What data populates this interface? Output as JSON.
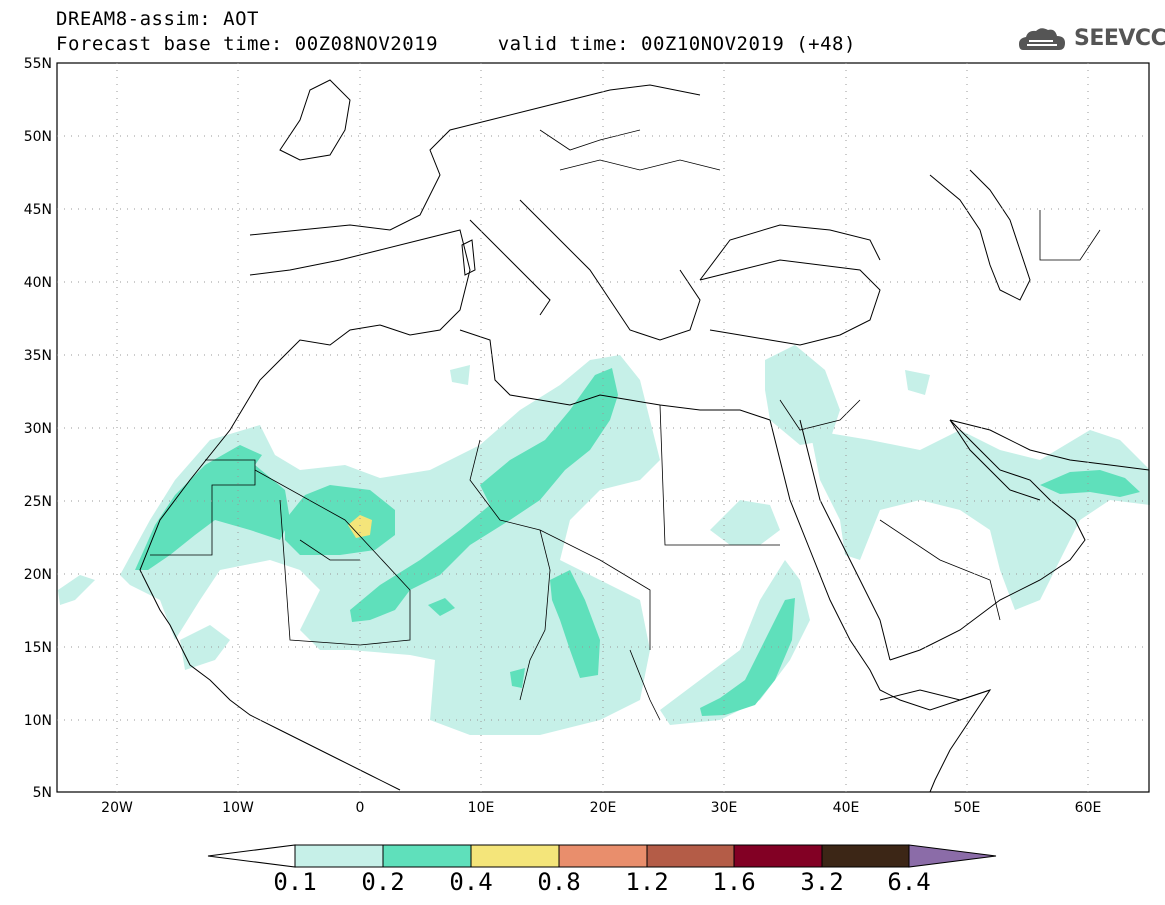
{
  "title": {
    "line1": "DREAM8-assim: AOT",
    "line2": "Forecast base time: 00Z08NOV2019     valid time: 00Z10NOV2019 (+48)"
  },
  "logo": {
    "text": "SEEVCCC",
    "icon": "cloud-icon"
  },
  "map": {
    "lat_labels": [
      "55N",
      "50N",
      "45N",
      "40N",
      "35N",
      "30N",
      "25N",
      "20N",
      "15N",
      "10N",
      "5N"
    ],
    "lon_labels": [
      "20W",
      "10W",
      "0",
      "10E",
      "20E",
      "30E",
      "40E",
      "50E",
      "60E"
    ],
    "lat_range": [
      5,
      55
    ],
    "lon_range": [
      -25,
      65
    ],
    "grid": "dotted"
  },
  "colorbar": {
    "labels": [
      "0.1",
      "0.2",
      "0.4",
      "0.8",
      "1.2",
      "1.6",
      "3.2",
      "6.4"
    ],
    "colors": [
      "#ffffff",
      "#c6f0e8",
      "#5fe0bb",
      "#f4e57a",
      "#e98e6c",
      "#b45c47",
      "#820024",
      "#3c2616",
      "#8b6ca8"
    ]
  },
  "colors": {
    "c1": "#c6f0e8",
    "c2": "#5fe0bb",
    "c3": "#f4e57a"
  }
}
